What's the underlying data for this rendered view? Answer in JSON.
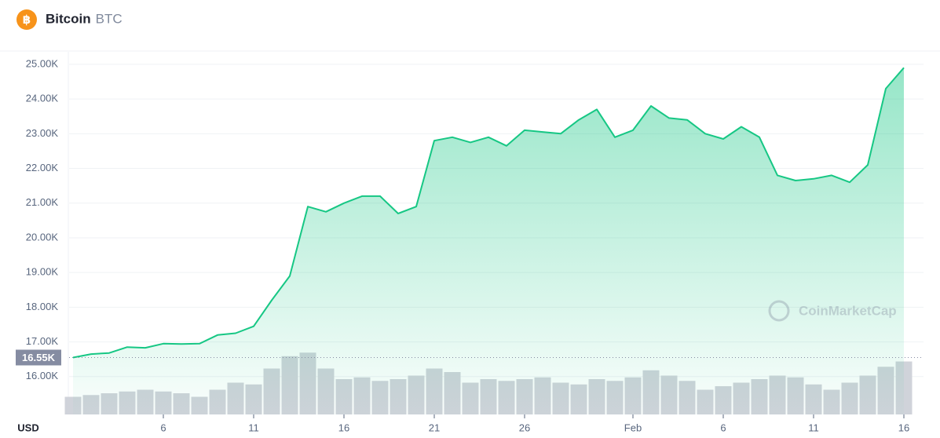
{
  "chart_data": {
    "type": "line",
    "title": "Bitcoin",
    "subtitle": "BTC",
    "y_label": "USD",
    "watermark": "CoinMarketCap",
    "categories": [
      null,
      null,
      null,
      null,
      null,
      "6",
      null,
      null,
      null,
      null,
      "11",
      null,
      null,
      null,
      null,
      "16",
      null,
      null,
      null,
      null,
      "21",
      null,
      null,
      null,
      null,
      "26",
      null,
      null,
      null,
      null,
      null,
      "Feb",
      null,
      null,
      null,
      null,
      "6",
      null,
      null,
      null,
      null,
      "11",
      null,
      null,
      null,
      null,
      "16"
    ],
    "values": [
      16.55,
      16.65,
      16.68,
      16.85,
      16.83,
      16.95,
      16.94,
      16.95,
      17.2,
      17.25,
      17.45,
      18.2,
      18.9,
      20.9,
      20.75,
      21.0,
      21.2,
      21.2,
      20.7,
      20.9,
      22.8,
      22.9,
      22.75,
      22.9,
      22.65,
      23.1,
      23.05,
      23.0,
      23.4,
      23.7,
      22.9,
      23.1,
      23.8,
      23.45,
      23.4,
      23.0,
      22.85,
      23.2,
      22.9,
      21.8,
      21.65,
      21.7,
      21.8,
      21.6,
      22.1,
      24.3,
      24.9
    ],
    "color": "#16c784",
    "volume": {
      "values": [
        10,
        11,
        12,
        13,
        14,
        13,
        12,
        10,
        14,
        18,
        17,
        26,
        33,
        35,
        26,
        20,
        21,
        19,
        20,
        22,
        26,
        24,
        18,
        20,
        19,
        20,
        21,
        18,
        17,
        20,
        19,
        21,
        25,
        22,
        19,
        14,
        16,
        18,
        20,
        22,
        21,
        17,
        14,
        18,
        22,
        27,
        30
      ],
      "color": "#d0d3da",
      "ylim": [
        0,
        40
      ]
    },
    "price_marker": {
      "value": 16.55,
      "label": "16.55K"
    },
    "ylim": [
      14.91,
      25.36
    ],
    "yticks": [
      {
        "value": 16,
        "label": "16.00K"
      },
      {
        "value": 17,
        "label": "17.00K"
      },
      {
        "value": 18,
        "label": "18.00K"
      },
      {
        "value": 19,
        "label": "19.00K"
      },
      {
        "value": 20,
        "label": "20.00K"
      },
      {
        "value": 21,
        "label": "21.00K"
      },
      {
        "value": 22,
        "label": "22.00K"
      },
      {
        "value": 23,
        "label": "23.00K"
      },
      {
        "value": 24,
        "label": "24.00K"
      },
      {
        "value": 25,
        "label": "25.00K"
      }
    ],
    "grid": true
  }
}
